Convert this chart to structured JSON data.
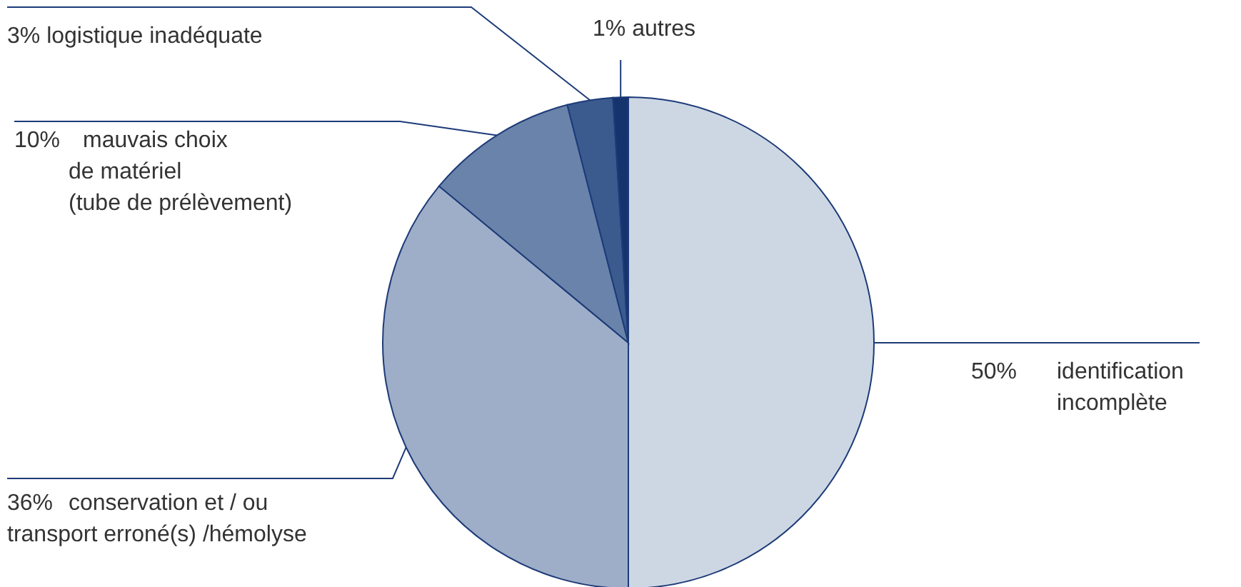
{
  "chart_data": {
    "type": "pie",
    "categories": [
      "identification\nincomplète",
      "conservation et / ou\ntransport erroné(s) /hémolyse",
      "mauvais choix\nde matériel\n(tube de prélèvement)",
      "logistique inadéquate",
      "autres"
    ],
    "values": [
      50,
      36,
      10,
      3,
      1
    ],
    "colors": [
      "#cdd7e4",
      "#9eaec8",
      "#6a83aa",
      "#3b5b8f",
      "#15346e"
    ],
    "value_labels": [
      "50%",
      "36%",
      "10%",
      "3%",
      "1%"
    ]
  }
}
